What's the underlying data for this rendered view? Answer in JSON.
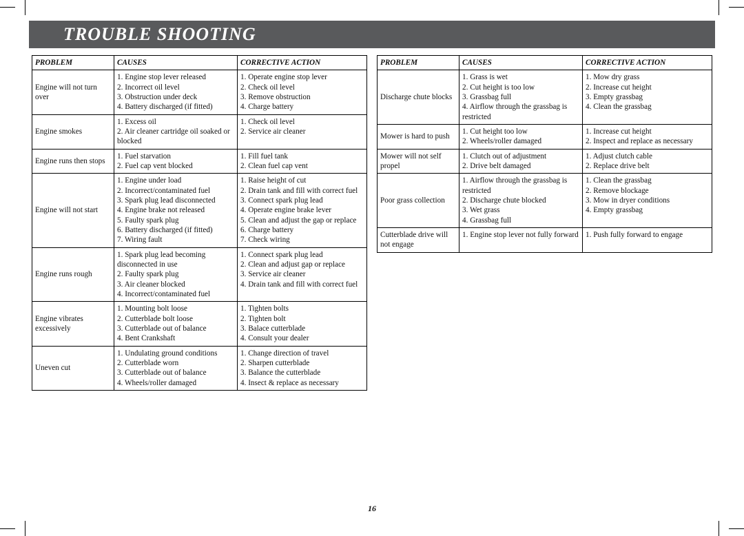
{
  "title": "TROUBLE SHOOTING",
  "pageNumber": "16",
  "headers": {
    "problem": "PROBLEM",
    "causes": "CAUSES",
    "action": "CORRECTIVE ACTION"
  },
  "leftTable": [
    {
      "problem": "Engine will not turn over",
      "causes": "1. Engine stop lever released\n2. Incorrect oil level\n3. Obstruction under deck\n4. Battery discharged (if fitted)",
      "action": "1. Operate engine stop lever\n2. Check oil level\n3. Remove obstruction\n4. Charge battery"
    },
    {
      "problem": "Engine smokes",
      "causes": "1. Excess oil\n2. Air cleaner cartridge oil soaked or blocked",
      "action": "1. Check oil level\n2. Service air cleaner"
    },
    {
      "problem": "Engine runs then stops",
      "causes": "1. Fuel starvation\n2. Fuel cap vent blocked",
      "action": "1. Fill fuel tank\n2. Clean fuel cap vent"
    },
    {
      "problem": "Engine will not start",
      "causes": "1. Engine under load\n2. Incorrect/contaminated fuel\n3. Spark plug lead disconnected\n4. Engine brake not released\n5. Faulty spark plug\n6. Battery discharged (if fitted)\n7. Wiring fault",
      "action": "1. Raise height of cut\n2. Drain tank and fill with correct fuel\n3. Connect spark plug lead\n4. Operate engine brake lever\n5. Clean and adjust the gap or replace\n6. Charge battery\n7. Check wiring"
    },
    {
      "problem": "Engine runs rough",
      "causes": "1. Spark plug lead becoming disconnected in use\n2. Faulty spark plug\n3. Air cleaner blocked\n4. Incorrect/contaminated fuel",
      "action": "1. Connect spark plug lead\n2. Clean and adjust gap or replace\n3. Service air cleaner\n4. Drain tank and fill with correct fuel"
    },
    {
      "problem": "Engine vibrates excessively",
      "causes": "1. Mounting bolt loose\n2. Cutterblade bolt loose\n3. Cutterblade out of balance\n4. Bent Crankshaft",
      "action": "1. Tighten bolts\n2. Tighten bolt\n3. Balace cutterblade\n4. Consult your dealer"
    },
    {
      "problem": "Uneven cut",
      "causes": "1. Undulating ground conditions\n2. Cutterblade worn\n3. Cutterblade out of balance\n4. Wheels/roller damaged",
      "action": "1. Change direction of travel\n2. Sharpen cutterblade\n3. Balance the cutterblade\n4. Insect & replace as necessary"
    }
  ],
  "rightTable": [
    {
      "problem": "Discharge chute blocks",
      "causes": "1. Grass is wet\n2. Cut height is too low\n3. Grassbag full\n4. Airflow through the grassbag is restricted",
      "action": "1. Mow dry grass\n2. Increase cut height\n3. Empty grassbag\n4. Clean the grassbag"
    },
    {
      "problem": "Mower is hard to push",
      "causes": "1. Cut height too low\n2. Wheels/roller damaged",
      "action": "1. Increase cut height\n2. Inspect and replace as necessary"
    },
    {
      "problem": "Mower will not self propel",
      "causes": "1. Clutch out of adjustment\n2. Drive belt damaged",
      "action": "1. Adjust clutch cable\n2. Replace drive belt"
    },
    {
      "problem": "Poor grass collection",
      "causes": "1. Airflow through the grassbag is restricted\n2. Discharge chute blocked\n3. Wet grass\n4. Grassbag full",
      "action": "1. Clean the grassbag\n2. Remove blockage\n3. Mow in dryer conditions\n4. Empty grassbag"
    },
    {
      "problem": "Cutterblade drive will not engage",
      "causes": "1. Engine stop lever not fully forward",
      "action": "1. Push fully forward to engage"
    }
  ]
}
